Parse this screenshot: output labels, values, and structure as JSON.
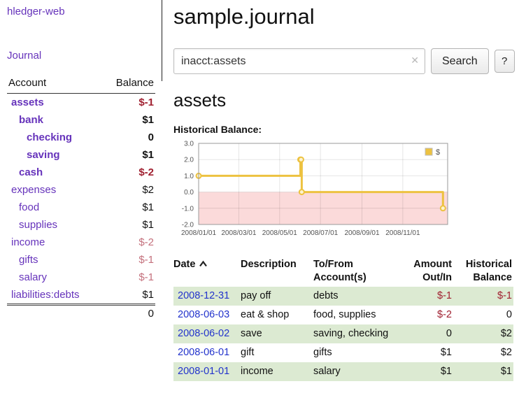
{
  "app": {
    "name": "hledger-web"
  },
  "sidebar": {
    "nav": [
      {
        "label": "Journal"
      }
    ],
    "accounts": {
      "columns": [
        "Account",
        "Balance"
      ],
      "rows": [
        {
          "name": "assets",
          "balance": "$-1",
          "depth": 0,
          "emph": true
        },
        {
          "name": "bank",
          "balance": "$1",
          "depth": 1,
          "emph": true
        },
        {
          "name": "checking",
          "balance": "0",
          "depth": 2,
          "emph": true
        },
        {
          "name": "saving",
          "balance": "$1",
          "depth": 2,
          "emph": true
        },
        {
          "name": "cash",
          "balance": "$-2",
          "depth": 1,
          "emph": true
        },
        {
          "name": "expenses",
          "balance": "$2",
          "depth": 0,
          "emph": false
        },
        {
          "name": "food",
          "balance": "$1",
          "depth": 1,
          "emph": false
        },
        {
          "name": "supplies",
          "balance": "$1",
          "depth": 1,
          "emph": false
        },
        {
          "name": "income",
          "balance": "$-2",
          "depth": 0,
          "emph": false
        },
        {
          "name": "gifts",
          "balance": "$-1",
          "depth": 1,
          "emph": false
        },
        {
          "name": "salary",
          "balance": "$-1",
          "depth": 1,
          "emph": false
        },
        {
          "name": "liabilities:debts",
          "balance": "$1",
          "depth": 0,
          "emph": false
        }
      ],
      "total": "0"
    }
  },
  "main": {
    "title": "sample.journal",
    "search": {
      "value": "inacct:assets",
      "clear_icon": "✕",
      "button_label": "Search",
      "help_label": "?"
    },
    "account_heading": "assets",
    "chart_title": "Historical Balance:"
  },
  "chart_data": {
    "type": "line",
    "line_style": "step",
    "title": "Historical Balance",
    "xlim": [
      0,
      372
    ],
    "ylim": [
      -2,
      3
    ],
    "grid": true,
    "negative_region_color": "#fbdada",
    "legend": {
      "position": "top-right",
      "entries": [
        {
          "label": "$",
          "color": "#edc240"
        }
      ]
    },
    "yticks": [
      {
        "v": 3,
        "label": "3.0"
      },
      {
        "v": 2,
        "label": "2.0"
      },
      {
        "v": 1,
        "label": "1.0"
      },
      {
        "v": 0,
        "label": "0.0"
      },
      {
        "v": -1,
        "label": "-1.0"
      },
      {
        "v": -2,
        "label": "-2.0"
      }
    ],
    "xticks": [
      {
        "v": 0,
        "label": "2008/01/01"
      },
      {
        "v": 60,
        "label": "2008/03/01"
      },
      {
        "v": 121,
        "label": "2008/05/01"
      },
      {
        "v": 182,
        "label": "2008/07/01"
      },
      {
        "v": 244,
        "label": "2008/09/01"
      },
      {
        "v": 305,
        "label": "2008/11/01"
      }
    ],
    "series": [
      {
        "name": "$",
        "color": "#edc240",
        "points": [
          {
            "x": 0,
            "y": 1,
            "date": "2008-01-01"
          },
          {
            "x": 152,
            "y": 2,
            "date": "2008-06-01"
          },
          {
            "x": 153,
            "y": 2,
            "date": "2008-06-02"
          },
          {
            "x": 154,
            "y": 0,
            "date": "2008-06-03"
          },
          {
            "x": 365,
            "y": -1,
            "date": "2008-12-31"
          }
        ]
      }
    ]
  },
  "register": {
    "headers": [
      "Date",
      "Description",
      "To/From Account(s)",
      "Amount Out/In",
      "Historical Balance"
    ],
    "sort": {
      "column": "Date",
      "direction": "ascending"
    },
    "rows": [
      {
        "date": "2008-12-31",
        "description": "pay off",
        "accounts": "debts",
        "amount": "$-1",
        "balance": "$-1"
      },
      {
        "date": "2008-06-03",
        "description": "eat & shop",
        "accounts": "food, supplies",
        "amount": "$-2",
        "balance": "0"
      },
      {
        "date": "2008-06-02",
        "description": "save",
        "accounts": "saving, checking",
        "amount": "0",
        "balance": "$2"
      },
      {
        "date": "2008-06-01",
        "description": "gift",
        "accounts": "gifts",
        "amount": "$1",
        "balance": "$2"
      },
      {
        "date": "2008-01-01",
        "description": "income",
        "accounts": "salary",
        "amount": "$1",
        "balance": "$1"
      }
    ]
  },
  "colors": {
    "link_purple": "#6633bb",
    "link_blue": "#2233cc",
    "negative_strong": "#a02030",
    "negative_soft": "#c4707c",
    "row_green": "#dcead2",
    "chart_line": "#edc240",
    "chart_negative_bg": "#fbdada"
  }
}
